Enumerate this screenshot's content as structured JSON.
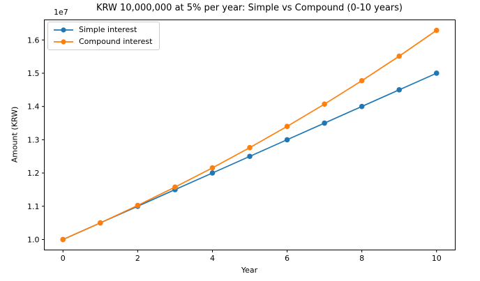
{
  "figure": {
    "background": "#ffffff",
    "text_color": "#000000",
    "spine_color": "#000000"
  },
  "chart_data": {
    "type": "line",
    "title": "KRW 10,000,000 at 5% per year: Simple vs Compound (0-10 years)",
    "xlabel": "Year",
    "ylabel": "Amount (KRW)",
    "y_offset_label": "1e7",
    "value_unit": "1e7 KRW",
    "x": [
      0,
      1,
      2,
      3,
      4,
      5,
      6,
      7,
      8,
      9,
      10
    ],
    "series": [
      {
        "name": "Simple interest",
        "color": "#1f77b4",
        "marker": "circle",
        "values": [
          1.0,
          1.05,
          1.1,
          1.15,
          1.2,
          1.25,
          1.3,
          1.35,
          1.4,
          1.45,
          1.5
        ]
      },
      {
        "name": "Compound interest",
        "color": "#ff7f0e",
        "marker": "circle",
        "values": [
          1.0,
          1.05,
          1.1025,
          1.157625,
          1.2155063,
          1.2762816,
          1.3400956,
          1.4071004,
          1.4774554,
          1.5513282,
          1.6288946
        ]
      }
    ],
    "xlim": [
      -0.5,
      10.5
    ],
    "ylim": [
      0.9685553,
      1.6603394
    ],
    "xticks": [
      0,
      2,
      4,
      6,
      8,
      10
    ],
    "xtick_labels": [
      "0",
      "2",
      "4",
      "6",
      "8",
      "10"
    ],
    "yticks": [
      1.0,
      1.1,
      1.2,
      1.3,
      1.4,
      1.5,
      1.6
    ],
    "ytick_labels": [
      "1.0",
      "1.1",
      "1.2",
      "1.3",
      "1.4",
      "1.5",
      "1.6"
    ],
    "grid": false,
    "legend": {
      "position": "upper left"
    }
  }
}
